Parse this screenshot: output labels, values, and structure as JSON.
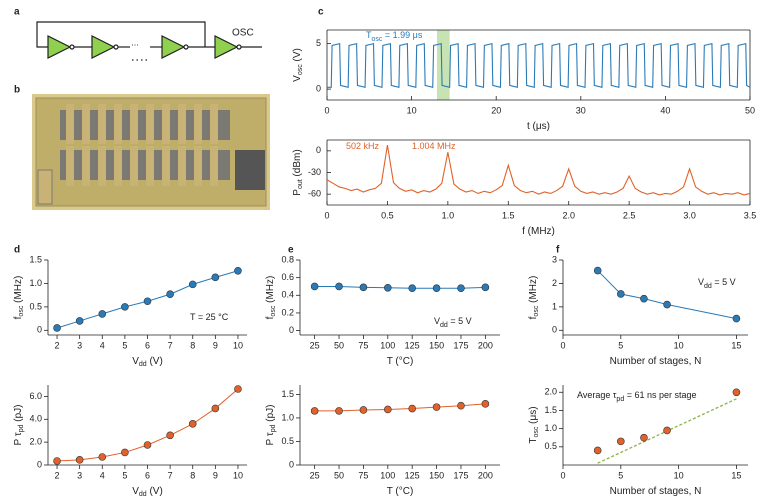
{
  "panel_labels": [
    "a",
    "b",
    "c",
    "d",
    "e",
    "f"
  ],
  "schematic": {
    "output_label": "OSC",
    "ellipsis": "..."
  },
  "chart_data": [
    {
      "type": "line",
      "color": "#2a7ab8",
      "annotation_color": "#2a7ab8",
      "xlabel": [
        "t (μs)"
      ],
      "ylabel": [
        "V",
        "osc",
        " (V)"
      ],
      "annotations": [
        [
          "T",
          "osc",
          " = 1.99 μs"
        ]
      ],
      "highlight": [
        13,
        14.5
      ],
      "highlight_color": "#b9dca0",
      "xlim": [
        0,
        50
      ],
      "xticks": [
        0,
        10,
        20,
        30,
        40,
        50
      ],
      "ylim": [
        -1.2,
        6.5
      ],
      "yticks": [
        0,
        5
      ],
      "x": [
        0,
        0.5,
        0.6,
        1.5,
        1.6,
        2.5,
        2.6,
        3.5,
        3.6,
        4.5,
        4.6,
        5.5,
        5.6,
        6.5,
        6.6,
        7.5,
        7.6,
        8.5,
        8.6,
        9.5,
        9.6,
        10.5,
        10.6,
        11.5,
        11.6,
        12.5,
        12.6,
        13.5,
        13.6,
        14.5,
        14.6,
        15.5,
        15.6,
        16.5,
        16.6,
        17.5,
        17.6,
        18.5,
        18.6,
        19.5,
        19.6,
        20.5,
        20.6,
        21.5,
        21.6,
        22.5,
        22.6,
        23.5,
        23.6,
        24.5,
        24.6,
        25.5,
        25.6,
        26.5,
        26.6,
        27.5,
        27.6,
        28.5,
        28.6,
        29.5,
        29.6,
        30.5,
        30.6,
        31.5,
        31.6,
        32.5,
        32.6,
        33.5,
        33.6,
        34.5,
        34.6,
        35.5,
        35.6,
        36.5,
        36.6,
        37.5,
        37.6,
        38.5,
        38.6,
        39.5,
        39.6,
        40.5,
        40.6,
        41.5,
        41.6,
        42.5,
        42.6,
        43.5,
        43.6,
        44.5,
        44.6,
        45.5,
        45.6,
        46.5,
        46.6,
        47.5,
        47.6,
        48.5,
        48.6,
        49.5,
        49.6,
        50
      ],
      "values": [
        0.2,
        0.2,
        4.8,
        5,
        0.4,
        0.2,
        4.8,
        5,
        0.4,
        0.2,
        4.8,
        5,
        0.4,
        0.2,
        4.8,
        5,
        0.4,
        0.2,
        4.8,
        5,
        0.4,
        0.2,
        4.8,
        5,
        0.4,
        0.2,
        4.8,
        5,
        0.4,
        0.2,
        4.8,
        5,
        0.4,
        0.2,
        4.8,
        5,
        0.4,
        0.2,
        4.8,
        5,
        0.4,
        0.2,
        4.8,
        5,
        0.4,
        0.2,
        4.8,
        5,
        0.4,
        0.2,
        4.8,
        5,
        0.4,
        0.2,
        4.8,
        5,
        0.4,
        0.2,
        4.8,
        5,
        0.4,
        0.2,
        4.8,
        5,
        0.4,
        0.2,
        4.8,
        5,
        0.4,
        0.2,
        4.8,
        5,
        0.4,
        0.2,
        4.8,
        5,
        0.4,
        0.2,
        4.8,
        5,
        0.4,
        0.2,
        4.8,
        5,
        0.4,
        0.2,
        4.8,
        5,
        0.4,
        0.2,
        4.8,
        5,
        0.4,
        0.2,
        4.8,
        5,
        0.4,
        0.2,
        4.8,
        5,
        0.4,
        0.2
      ]
    },
    {
      "type": "line",
      "color": "#e0622a",
      "annotation_color": "#e0622a",
      "xlabel": [
        "f (MHz)"
      ],
      "ylabel": [
        "P",
        "out",
        " (dBm)"
      ],
      "annotations": [
        [
          "502 kHz"
        ],
        [
          "1.004 MHz"
        ]
      ],
      "xlim": [
        0,
        3.5
      ],
      "xticks": [
        0,
        0.5,
        {
          "value": 1,
          "label": "1.0"
        },
        1.5,
        {
          "value": 2,
          "label": "2.0"
        },
        2.5,
        {
          "value": 3,
          "label": "3.0"
        },
        3.5
      ],
      "ylim": [
        -75,
        15
      ],
      "yticks": [
        -60,
        -30,
        0
      ],
      "x": [
        0,
        0.05,
        0.1,
        0.15,
        0.2,
        0.25,
        0.3,
        0.35,
        0.4,
        0.45,
        0.5,
        0.55,
        0.6,
        0.65,
        0.7,
        0.75,
        0.8,
        0.85,
        0.9,
        0.95,
        1,
        1.05,
        1.1,
        1.15,
        1.2,
        1.25,
        1.3,
        1.35,
        1.4,
        1.45,
        1.5,
        1.55,
        1.6,
        1.65,
        1.7,
        1.75,
        1.8,
        1.85,
        1.9,
        1.95,
        2,
        2.05,
        2.1,
        2.15,
        2.2,
        2.25,
        2.3,
        2.35,
        2.4,
        2.45,
        2.5,
        2.55,
        2.6,
        2.65,
        2.7,
        2.75,
        2.8,
        2.85,
        2.9,
        2.95,
        3,
        3.05,
        3.1,
        3.15,
        3.2,
        3.25,
        3.3,
        3.35,
        3.4,
        3.45,
        3.5
      ],
      "values": [
        -40,
        -45,
        -50,
        -52,
        -55,
        -53,
        -57,
        -54,
        -52,
        -45,
        8,
        -44,
        -52,
        -56,
        -54,
        -58,
        -55,
        -57,
        -53,
        -45,
        -2,
        -46,
        -53,
        -57,
        -55,
        -59,
        -56,
        -58,
        -54,
        -48,
        -20,
        -48,
        -55,
        -58,
        -56,
        -60,
        -57,
        -59,
        -55,
        -49,
        -25,
        -49,
        -56,
        -59,
        -57,
        -60,
        -58,
        -60,
        -57,
        -52,
        -35,
        -52,
        -57,
        -60,
        -58,
        -61,
        -59,
        -60,
        -56,
        -50,
        -25,
        -50,
        -56,
        -60,
        -58,
        -61,
        -59,
        -60,
        -58,
        -61,
        -59
      ]
    },
    {
      "type": "line",
      "color": "#2a7ab8",
      "markers": true,
      "annotation_color": "#222",
      "xlabel": [
        "V",
        "dd",
        " (V)"
      ],
      "ylabel": [
        "f",
        "osc",
        " (MHz)"
      ],
      "annotations": [
        [
          "T = 25 °C"
        ]
      ],
      "xlim": [
        1.6,
        10.4
      ],
      "xticks": [
        2,
        3,
        4,
        5,
        6,
        7,
        8,
        9,
        10
      ],
      "ylim": [
        -0.1,
        1.5
      ],
      "yticks": [
        0,
        0.5,
        {
          "value": 1,
          "label": "1.0"
        },
        1.5
      ],
      "x": [
        2,
        3,
        4,
        5,
        6,
        7,
        8,
        9,
        10
      ],
      "values": [
        0.05,
        0.2,
        0.35,
        0.5,
        0.62,
        0.77,
        0.98,
        1.13,
        1.27
      ]
    },
    {
      "type": "line",
      "color": "#e0622a",
      "markers": true,
      "xlabel": [
        "V",
        "dd",
        " (V)"
      ],
      "ylabel": [
        "P τ",
        "pd",
        " (pJ)"
      ],
      "xlim": [
        1.6,
        10.4
      ],
      "xticks": [
        2,
        3,
        4,
        5,
        6,
        7,
        8,
        9,
        10
      ],
      "ylim": [
        0,
        7
      ],
      "yticks": [
        0,
        {
          "value": 2,
          "label": "2.0"
        },
        {
          "value": 4,
          "label": "4.0"
        },
        {
          "value": 6,
          "label": "6.0"
        }
      ],
      "x": [
        2,
        3,
        4,
        5,
        6,
        7,
        8,
        9,
        10
      ],
      "values": [
        0.35,
        0.45,
        0.7,
        1.1,
        1.75,
        2.6,
        3.6,
        4.95,
        6.65
      ]
    },
    {
      "type": "line",
      "color": "#2a7ab8",
      "markers": true,
      "annotation_color": "#222",
      "xlabel": [
        "T (°C)"
      ],
      "ylabel": [
        "f",
        "osc",
        " (MHz)"
      ],
      "annotations": [
        [
          "V",
          "dd",
          " = 5 V"
        ]
      ],
      "xlim": [
        10,
        215
      ],
      "xticks": [
        25,
        50,
        75,
        100,
        125,
        150,
        175,
        200
      ],
      "ylim": [
        -0.05,
        0.8
      ],
      "yticks": [
        0,
        0.2,
        0.4,
        0.6,
        0.8
      ],
      "x": [
        25,
        50,
        75,
        100,
        125,
        150,
        175,
        200
      ],
      "values": [
        0.5,
        0.5,
        0.49,
        0.485,
        0.48,
        0.48,
        0.48,
        0.49
      ]
    },
    {
      "type": "line",
      "color": "#e0622a",
      "markers": true,
      "xlabel": [
        "T (°C)"
      ],
      "ylabel": [
        "P τ",
        "pd",
        " (pJ)"
      ],
      "xlim": [
        10,
        215
      ],
      "xticks": [
        25,
        50,
        75,
        100,
        125,
        150,
        175,
        200
      ],
      "ylim": [
        0,
        1.7
      ],
      "yticks": [
        0,
        0.5,
        {
          "value": 1,
          "label": "1.0"
        },
        1.5
      ],
      "x": [
        25,
        50,
        75,
        100,
        125,
        150,
        175,
        200
      ],
      "values": [
        1.15,
        1.15,
        1.17,
        1.18,
        1.2,
        1.23,
        1.26,
        1.3
      ]
    },
    {
      "type": "line",
      "color": "#2a7ab8",
      "markers": true,
      "annotation_color": "#222",
      "xlabel": [
        "Number of stages, N"
      ],
      "ylabel": [
        "f",
        "osc",
        " (MHz)"
      ],
      "annotations": [
        [
          "V",
          "dd",
          " = 5 V"
        ]
      ],
      "xlim": [
        0,
        16
      ],
      "xticks": [
        0,
        5,
        10,
        15
      ],
      "ylim": [
        -0.2,
        3
      ],
      "yticks": [
        0,
        1,
        2,
        3
      ],
      "x": [
        3,
        5,
        7,
        9,
        15
      ],
      "values": [
        2.55,
        1.55,
        1.35,
        1.1,
        0.5
      ]
    },
    {
      "type": "scatter",
      "color": "#e0622a",
      "markers": true,
      "annotation_color": "#222",
      "xlabel": [
        "Number of stages, N"
      ],
      "ylabel": [
        "T",
        "osc",
        " (μs)"
      ],
      "annotations": [
        [
          "Average τ",
          "pd",
          " = 61 ns per stage"
        ]
      ],
      "trendline": {
        "x": [
          3,
          15
        ],
        "values": [
          0.05,
          1.82
        ],
        "color": "#8ab34a"
      },
      "xlim": [
        0,
        16
      ],
      "xticks": [
        0,
        5,
        10,
        15
      ],
      "ylim": [
        0,
        2.2
      ],
      "yticks": [
        0.5,
        {
          "value": 1,
          "label": "1.0"
        },
        1.5,
        {
          "value": 2,
          "label": "2.0"
        }
      ],
      "x": [
        3,
        5,
        7,
        9,
        15
      ],
      "values": [
        0.4,
        0.65,
        0.75,
        0.95,
        2.0
      ]
    }
  ]
}
